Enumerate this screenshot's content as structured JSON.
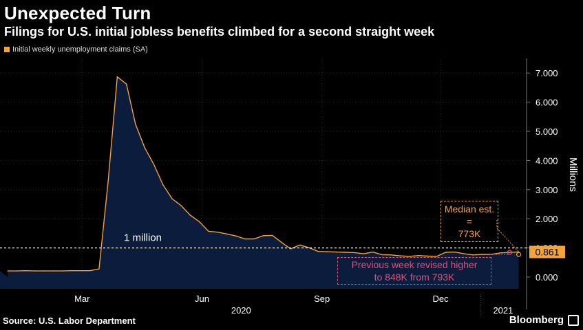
{
  "title": "Unexpected Turn",
  "subtitle": "Filings for U.S. initial jobless benefits climbed for a second straight week",
  "legend_label": "Initial weekly unemployment claims (SA)",
  "source": "Source: U.S. Labor Department",
  "brand": "Bloomberg",
  "colors": {
    "series": "#f2a33a",
    "area": "#0b1c3d",
    "annotation_orange": "#f2a33a",
    "annotation_pink": "#e0507a"
  },
  "chart_data": {
    "type": "area",
    "title": "Unexpected Turn",
    "subtitle": "Filings for U.S. initial jobless benefits climbed for a second straight week",
    "ylabel": "Millions",
    "ylim": [
      -0.4,
      7.5
    ],
    "y_ticks": [
      0.0,
      1.0,
      2.0,
      3.0,
      4.0,
      5.0,
      6.0,
      7.0
    ],
    "y_tick_labels": [
      "0.000",
      "1.000",
      "2.000",
      "3.000",
      "4.000",
      "5.000",
      "6.000",
      "7.000"
    ],
    "x_ticks": [
      {
        "label": "Mar",
        "x": "2020-03-01"
      },
      {
        "label": "Jun",
        "x": "2020-06-01"
      },
      {
        "label": "Sep",
        "x": "2020-09-01"
      },
      {
        "label": "Dec",
        "x": "2020-12-01"
      }
    ],
    "year_labels": [
      {
        "label": "2020",
        "x": "2020-07-01"
      },
      {
        "label": "2021",
        "x": "2021-01-18"
      }
    ],
    "xlim": [
      "2019-12-29",
      "2021-02-05"
    ],
    "grid": true,
    "legend_position": "top-left",
    "series": [
      {
        "name": "Initial weekly unemployment claims (SA)",
        "points": [
          [
            "2020-01-04",
            0.21
          ],
          [
            "2020-01-11",
            0.21
          ],
          [
            "2020-01-18",
            0.22
          ],
          [
            "2020-01-25",
            0.21
          ],
          [
            "2020-02-01",
            0.21
          ],
          [
            "2020-02-08",
            0.21
          ],
          [
            "2020-02-15",
            0.21
          ],
          [
            "2020-02-22",
            0.22
          ],
          [
            "2020-02-29",
            0.22
          ],
          [
            "2020-03-07",
            0.22
          ],
          [
            "2020-03-14",
            0.28
          ],
          [
            "2020-03-21",
            3.3
          ],
          [
            "2020-03-28",
            6.87
          ],
          [
            "2020-04-04",
            6.62
          ],
          [
            "2020-04-11",
            5.24
          ],
          [
            "2020-04-18",
            4.44
          ],
          [
            "2020-04-25",
            3.87
          ],
          [
            "2020-05-02",
            3.17
          ],
          [
            "2020-05-09",
            2.69
          ],
          [
            "2020-05-16",
            2.45
          ],
          [
            "2020-05-23",
            2.12
          ],
          [
            "2020-05-30",
            1.9
          ],
          [
            "2020-06-06",
            1.57
          ],
          [
            "2020-06-13",
            1.54
          ],
          [
            "2020-06-20",
            1.48
          ],
          [
            "2020-06-27",
            1.41
          ],
          [
            "2020-07-04",
            1.31
          ],
          [
            "2020-07-11",
            1.31
          ],
          [
            "2020-07-18",
            1.42
          ],
          [
            "2020-07-25",
            1.43
          ],
          [
            "2020-08-01",
            1.19
          ],
          [
            "2020-08-08",
            0.97
          ],
          [
            "2020-08-15",
            1.1
          ],
          [
            "2020-08-22",
            1.01
          ],
          [
            "2020-08-29",
            0.88
          ],
          [
            "2020-09-05",
            0.87
          ],
          [
            "2020-09-12",
            0.86
          ],
          [
            "2020-09-19",
            0.85
          ],
          [
            "2020-09-26",
            0.84
          ],
          [
            "2020-10-03",
            0.8
          ],
          [
            "2020-10-10",
            0.86
          ],
          [
            "2020-10-17",
            0.77
          ],
          [
            "2020-10-24",
            0.76
          ],
          [
            "2020-10-31",
            0.73
          ],
          [
            "2020-11-07",
            0.71
          ],
          [
            "2020-11-14",
            0.74
          ],
          [
            "2020-11-21",
            0.72
          ],
          [
            "2020-11-28",
            0.71
          ],
          [
            "2020-12-05",
            0.85
          ],
          [
            "2020-12-12",
            0.86
          ],
          [
            "2020-12-19",
            0.8
          ],
          [
            "2020-12-26",
            0.76
          ],
          [
            "2021-01-02",
            0.78
          ],
          [
            "2021-01-09",
            0.78
          ],
          [
            "2021-01-16",
            0.83
          ],
          [
            "2021-01-23",
            0.848
          ],
          [
            "2021-01-30",
            0.861
          ]
        ]
      }
    ],
    "reference_line": {
      "y": 1.0,
      "label": "1 million"
    },
    "last_value_label": "0.861",
    "annotations": [
      {
        "text": [
          "Median est. =",
          "773K"
        ],
        "x": "2021-01-30",
        "y": 0.773,
        "color": "orange"
      },
      {
        "text": [
          "Previous week revised higher",
          "to 848K from 793K"
        ],
        "x": "2021-01-23",
        "y": 0.848,
        "color": "pink"
      }
    ]
  }
}
